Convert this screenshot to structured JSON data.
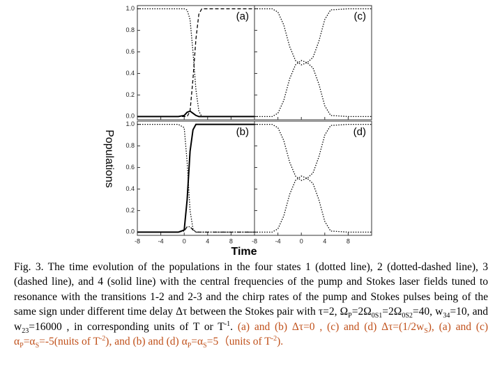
{
  "chart_data": [
    {
      "type": "line",
      "label": "(a)",
      "xlim": [
        -8,
        12
      ],
      "ylim": [
        -0.03,
        1.03
      ],
      "xticks": [
        -8,
        -4,
        0,
        4,
        8
      ],
      "yticks": [
        {
          "value": 0,
          "label": "0.0"
        },
        {
          "value": 0.2,
          "label": "0.2"
        },
        {
          "value": 0.4,
          "label": "0.4"
        },
        {
          "value": 0.6,
          "label": "0.6"
        },
        {
          "value": 0.8,
          "label": "0.8"
        },
        {
          "value": 1,
          "label": "1.0"
        }
      ],
      "x": [
        -8,
        -1,
        0,
        0.5,
        1,
        1.5,
        2,
        2.5,
        3,
        4,
        12
      ],
      "series": [
        {
          "style": "dotted",
          "color": "#000000",
          "values": [
            1,
            1,
            1,
            0.99,
            0.9,
            0.6,
            0.25,
            0.05,
            0,
            0,
            0
          ]
        },
        {
          "style": "dashed",
          "color": "#000000",
          "values": [
            0,
            0,
            0,
            0,
            0.05,
            0.35,
            0.72,
            0.95,
            1,
            1,
            1
          ]
        },
        {
          "style": "solid",
          "color": "#000000",
          "values": [
            0,
            0,
            0.01,
            0.04,
            0.05,
            0.03,
            0.01,
            0,
            0,
            0,
            0
          ]
        }
      ]
    },
    {
      "type": "line",
      "label": "(c)",
      "xlim": [
        -8,
        12
      ],
      "ylim": [
        -0.03,
        1.03
      ],
      "xticks": [
        -8,
        -4,
        0,
        4,
        8
      ],
      "yticks": [
        0,
        0.2,
        0.4,
        0.6,
        0.8,
        1
      ],
      "x": [
        -8,
        -5,
        -4,
        -3,
        -2,
        -1,
        0,
        1,
        2,
        3,
        4,
        5,
        8,
        12
      ],
      "series": [
        {
          "style": "dotted",
          "color": "#000000",
          "values": [
            1,
            1,
            0.97,
            0.85,
            0.65,
            0.52,
            0.48,
            0.5,
            0.45,
            0.3,
            0.1,
            0.01,
            0,
            0
          ]
        },
        {
          "style": "dotted",
          "color": "#000000",
          "values": [
            0,
            0,
            0.03,
            0.15,
            0.35,
            0.48,
            0.52,
            0.5,
            0.55,
            0.7,
            0.9,
            0.99,
            1,
            1
          ]
        }
      ]
    },
    {
      "type": "line",
      "label": "(b)",
      "xlim": [
        -8,
        12
      ],
      "ylim": [
        -0.03,
        1.03
      ],
      "xticks": [
        -8,
        -4,
        0,
        4,
        8
      ],
      "yticks": [
        {
          "value": 0,
          "label": "0.0"
        },
        {
          "value": 0.2,
          "label": "0.2"
        },
        {
          "value": 0.4,
          "label": "0.4"
        },
        {
          "value": 0.6,
          "label": "0.6"
        },
        {
          "value": 0.8,
          "label": "0.8"
        },
        {
          "value": 1,
          "label": "1.0"
        }
      ],
      "x": [
        -8,
        -1,
        0,
        0.5,
        1,
        1.5,
        2,
        2.5,
        3,
        4,
        12
      ],
      "series": [
        {
          "style": "dotted",
          "color": "#000000",
          "values": [
            1,
            1,
            0.97,
            0.65,
            0.2,
            0.03,
            0,
            0,
            0,
            0,
            0
          ]
        },
        {
          "style": "dashdot",
          "color": "#000000",
          "values": [
            0,
            0,
            0.01,
            0.05,
            0.05,
            0.02,
            0,
            0,
            0,
            0,
            0
          ]
        },
        {
          "style": "solid",
          "color": "#000000",
          "values": [
            0,
            0,
            0.02,
            0.3,
            0.75,
            0.95,
            1,
            1,
            1,
            1,
            1
          ]
        }
      ]
    },
    {
      "type": "line",
      "label": "(d)",
      "xlim": [
        -8,
        12
      ],
      "ylim": [
        -0.03,
        1.03
      ],
      "xticks": [
        -8,
        -4,
        0,
        4,
        8
      ],
      "yticks": [
        0,
        0.2,
        0.4,
        0.6,
        0.8,
        1
      ],
      "x": [
        -8,
        -5,
        -4,
        -3,
        -2,
        -1,
        0,
        1,
        2,
        3,
        4,
        5,
        8,
        12
      ],
      "series": [
        {
          "style": "dotted",
          "color": "#000000",
          "values": [
            1,
            1,
            0.97,
            0.85,
            0.65,
            0.52,
            0.48,
            0.5,
            0.45,
            0.3,
            0.1,
            0.01,
            0,
            0
          ]
        },
        {
          "style": "dotted",
          "color": "#000000",
          "values": [
            0,
            0,
            0.03,
            0.15,
            0.35,
            0.48,
            0.52,
            0.5,
            0.55,
            0.7,
            0.9,
            0.99,
            1,
            1
          ]
        }
      ]
    }
  ],
  "shared_labels": {
    "x": "Time",
    "y": "Populations"
  },
  "caption": [
    {
      "text": "Fig. 3. The time evolution of the populations in the four states 1 (dotted line), 2 (dotted-dashed line), 3 (dashed line), and 4 (solid line) with the central frequencies of the pump and Stokes laser fields tuned to resonance with the transitions 1-2 and 2-3 and the chirp rates of the pump and Stokes pulses being of the same sign under different time delay Δτ between the Stokes pair with τ=2, Ω"
    },
    {
      "text": "P",
      "fmt": "sub"
    },
    {
      "text": "=2Ω"
    },
    {
      "text": "0S1",
      "fmt": "sub"
    },
    {
      "text": "=2Ω"
    },
    {
      "text": "0S2",
      "fmt": "sub"
    },
    {
      "text": "=40, w"
    },
    {
      "text": "34",
      "fmt": "sub"
    },
    {
      "text": "=10, and w"
    },
    {
      "text": "23",
      "fmt": "sub"
    },
    {
      "text": "=16000 , in corresponding units of T or T"
    },
    {
      "text": "-1",
      "fmt": "sup"
    },
    {
      "text": ". "
    },
    {
      "text": "(a) and (b) Δτ=0 , (c) and (d) Δτ=(1/2w",
      "color": "#c0501a"
    },
    {
      "text": "S",
      "fmt": "sub",
      "color": "#c0501a"
    },
    {
      "text": "), (a) and (c) α",
      "color": "#c0501a"
    },
    {
      "text": "P",
      "fmt": "sub",
      "color": "#c0501a"
    },
    {
      "text": "=α",
      "color": "#c0501a"
    },
    {
      "text": "S",
      "fmt": "sub",
      "color": "#c0501a"
    },
    {
      "text": "=-5(nuits of T",
      "color": "#c0501a"
    },
    {
      "text": "-2",
      "fmt": "sup",
      "color": "#c0501a"
    },
    {
      "text": "), and (b) and (d) α",
      "color": "#c0501a"
    },
    {
      "text": "P",
      "fmt": "sub",
      "color": "#c0501a"
    },
    {
      "text": "=α",
      "color": "#c0501a"
    },
    {
      "text": "S",
      "fmt": "sub",
      "color": "#c0501a"
    },
    {
      "text": "=5（units of T",
      "color": "#c0501a"
    },
    {
      "text": "-2",
      "fmt": "sup",
      "color": "#c0501a"
    },
    {
      "text": ").",
      "color": "#c0501a"
    }
  ]
}
